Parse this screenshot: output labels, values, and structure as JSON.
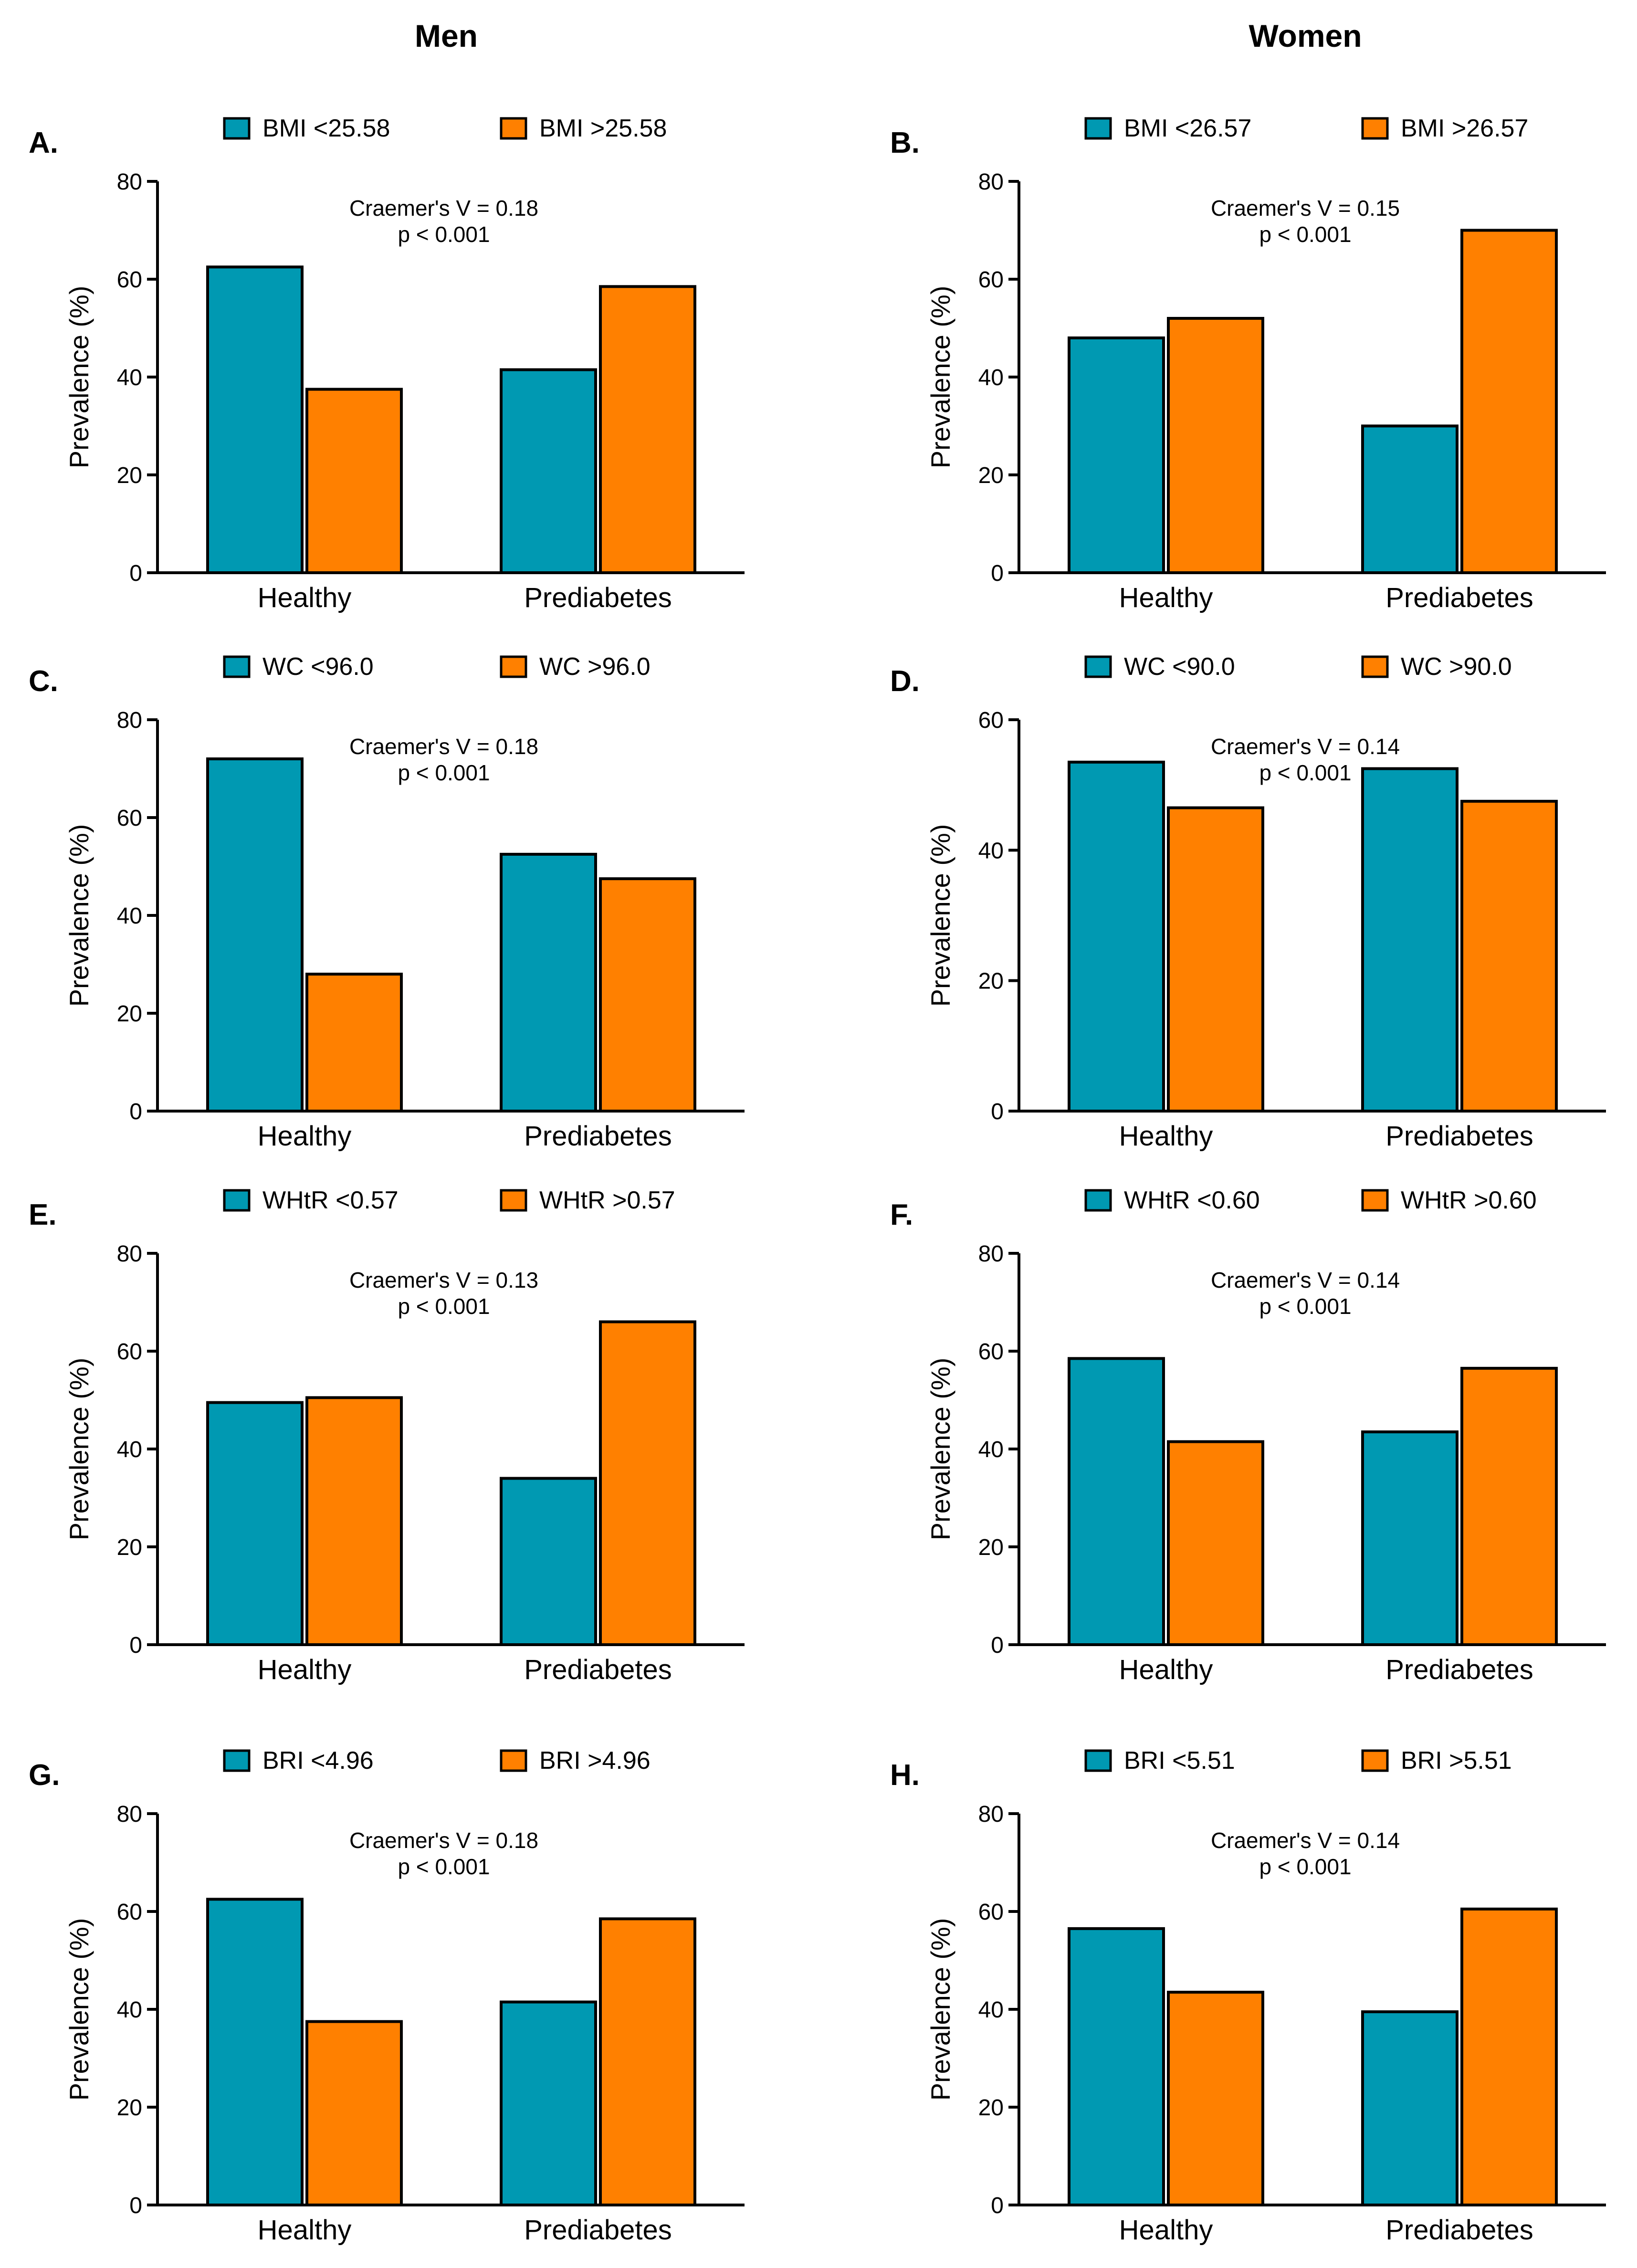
{
  "figure": {
    "column_titles": [
      "Men",
      "Women"
    ]
  },
  "colors": {
    "below": "#0099B2",
    "above": "#FF8000",
    "axis": "#000000"
  },
  "chart_data": [
    {
      "panel": "A.",
      "column": "Men",
      "type": "bar",
      "categories": [
        "Healthy",
        "Prediabetes"
      ],
      "legend": [
        "BMI <25.58",
        "BMI >25.58"
      ],
      "series": [
        {
          "name": "BMI <25.58",
          "values": [
            62.5,
            41.5
          ]
        },
        {
          "name": "BMI >25.58",
          "values": [
            37.5,
            58.5
          ]
        }
      ],
      "ylabel": "Prevalence (%)",
      "ylim": [
        0,
        80
      ],
      "yticks": [
        0,
        20,
        40,
        60,
        80
      ],
      "annotation": [
        "Craemer's V = 0.18",
        "p < 0.001"
      ]
    },
    {
      "panel": "B.",
      "column": "Women",
      "type": "bar",
      "categories": [
        "Healthy",
        "Prediabetes"
      ],
      "legend": [
        "BMI <26.57",
        "BMI >26.57"
      ],
      "series": [
        {
          "name": "BMI <26.57",
          "values": [
            48,
            30
          ]
        },
        {
          "name": "BMI >26.57",
          "values": [
            52,
            70
          ]
        }
      ],
      "ylabel": "Prevalence (%)",
      "ylim": [
        0,
        80
      ],
      "yticks": [
        0,
        20,
        40,
        60,
        80
      ],
      "annotation": [
        "Craemer's V = 0.15",
        "p < 0.001"
      ]
    },
    {
      "panel": "C.",
      "column": "Men",
      "type": "bar",
      "categories": [
        "Healthy",
        "Prediabetes"
      ],
      "legend": [
        "WC <96.0",
        "WC >96.0"
      ],
      "series": [
        {
          "name": "WC <96.0",
          "values": [
            72,
            52.5
          ]
        },
        {
          "name": "WC >96.0",
          "values": [
            28,
            47.5
          ]
        }
      ],
      "ylabel": "Prevalence (%)",
      "ylim": [
        0,
        80
      ],
      "yticks": [
        0,
        20,
        40,
        60,
        80
      ],
      "annotation": [
        "Craemer's V = 0.18",
        "p < 0.001"
      ]
    },
    {
      "panel": "D.",
      "column": "Women",
      "type": "bar",
      "categories": [
        "Healthy",
        "Prediabetes"
      ],
      "legend": [
        "WC <90.0",
        "WC >90.0"
      ],
      "series": [
        {
          "name": "WC <90.0",
          "values": [
            53.5,
            52.5
          ]
        },
        {
          "name": "WC >90.0",
          "values": [
            46.5,
            47.5
          ]
        }
      ],
      "ylabel": "Prevalence (%)",
      "ylim": [
        0,
        60
      ],
      "yticks": [
        0,
        20,
        40,
        60
      ],
      "annotation": [
        "Craemer's V = 0.14",
        "p < 0.001"
      ]
    },
    {
      "panel": "E.",
      "column": "Men",
      "type": "bar",
      "categories": [
        "Healthy",
        "Prediabetes"
      ],
      "legend": [
        "WHtR <0.57",
        "WHtR >0.57"
      ],
      "series": [
        {
          "name": "WHtR <0.57",
          "values": [
            49.5,
            34
          ]
        },
        {
          "name": "WHtR >0.57",
          "values": [
            50.5,
            66
          ]
        }
      ],
      "ylabel": "Prevalence (%)",
      "ylim": [
        0,
        80
      ],
      "yticks": [
        0,
        20,
        40,
        60,
        80
      ],
      "annotation": [
        "Craemer's V = 0.13",
        "p < 0.001"
      ]
    },
    {
      "panel": "F.",
      "column": "Women",
      "type": "bar",
      "categories": [
        "Healthy",
        "Prediabetes"
      ],
      "legend": [
        "WHtR <0.60",
        "WHtR >0.60"
      ],
      "series": [
        {
          "name": "WHtR <0.60",
          "values": [
            58.5,
            43.5
          ]
        },
        {
          "name": "WHtR >0.60",
          "values": [
            41.5,
            56.5
          ]
        }
      ],
      "ylabel": "Prevalence (%)",
      "ylim": [
        0,
        80
      ],
      "yticks": [
        0,
        20,
        40,
        60,
        80
      ],
      "annotation": [
        "Craemer's V = 0.14",
        "p < 0.001"
      ]
    },
    {
      "panel": "G.",
      "column": "Men",
      "type": "bar",
      "categories": [
        "Healthy",
        "Prediabetes"
      ],
      "legend": [
        "BRI <4.96",
        "BRI >4.96"
      ],
      "series": [
        {
          "name": "BRI <4.96",
          "values": [
            62.5,
            41.5
          ]
        },
        {
          "name": "BRI >4.96",
          "values": [
            37.5,
            58.5
          ]
        }
      ],
      "ylabel": "Prevalence (%)",
      "ylim": [
        0,
        80
      ],
      "yticks": [
        0,
        20,
        40,
        60,
        80
      ],
      "annotation": [
        "Craemer's V = 0.18",
        "p < 0.001"
      ]
    },
    {
      "panel": "H.",
      "column": "Women",
      "type": "bar",
      "categories": [
        "Healthy",
        "Prediabetes"
      ],
      "legend": [
        "BRI <5.51",
        "BRI >5.51"
      ],
      "series": [
        {
          "name": "BRI <5.51",
          "values": [
            56.5,
            39.5
          ]
        },
        {
          "name": "BRI >5.51",
          "values": [
            43.5,
            60.5
          ]
        }
      ],
      "ylabel": "Prevalence (%)",
      "ylim": [
        0,
        80
      ],
      "yticks": [
        0,
        20,
        40,
        60,
        80
      ],
      "annotation": [
        "Craemer's V = 0.14",
        "p < 0.001"
      ]
    }
  ]
}
